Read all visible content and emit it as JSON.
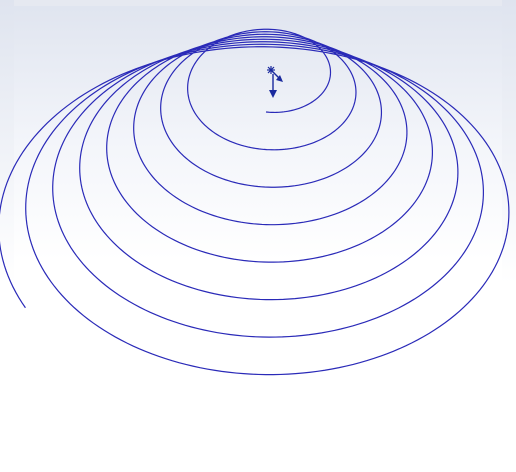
{
  "viewport": {
    "background_top": "#dfe4ef",
    "background_bottom": "#ffffff"
  },
  "helix": {
    "type": "conical-helix",
    "revolutions": 8,
    "curve_color": "#2a2ab8",
    "direction": "counterclockwise"
  },
  "start_marker": {
    "icon": "asterisk-icon",
    "color": "#1a2a9e"
  },
  "direction_arrow": {
    "icon": "arrow-down-icon",
    "color": "#1a2a9e"
  },
  "tangent_arrow": {
    "icon": "arrow-diagonal-icon",
    "color": "#1a2a9e"
  }
}
